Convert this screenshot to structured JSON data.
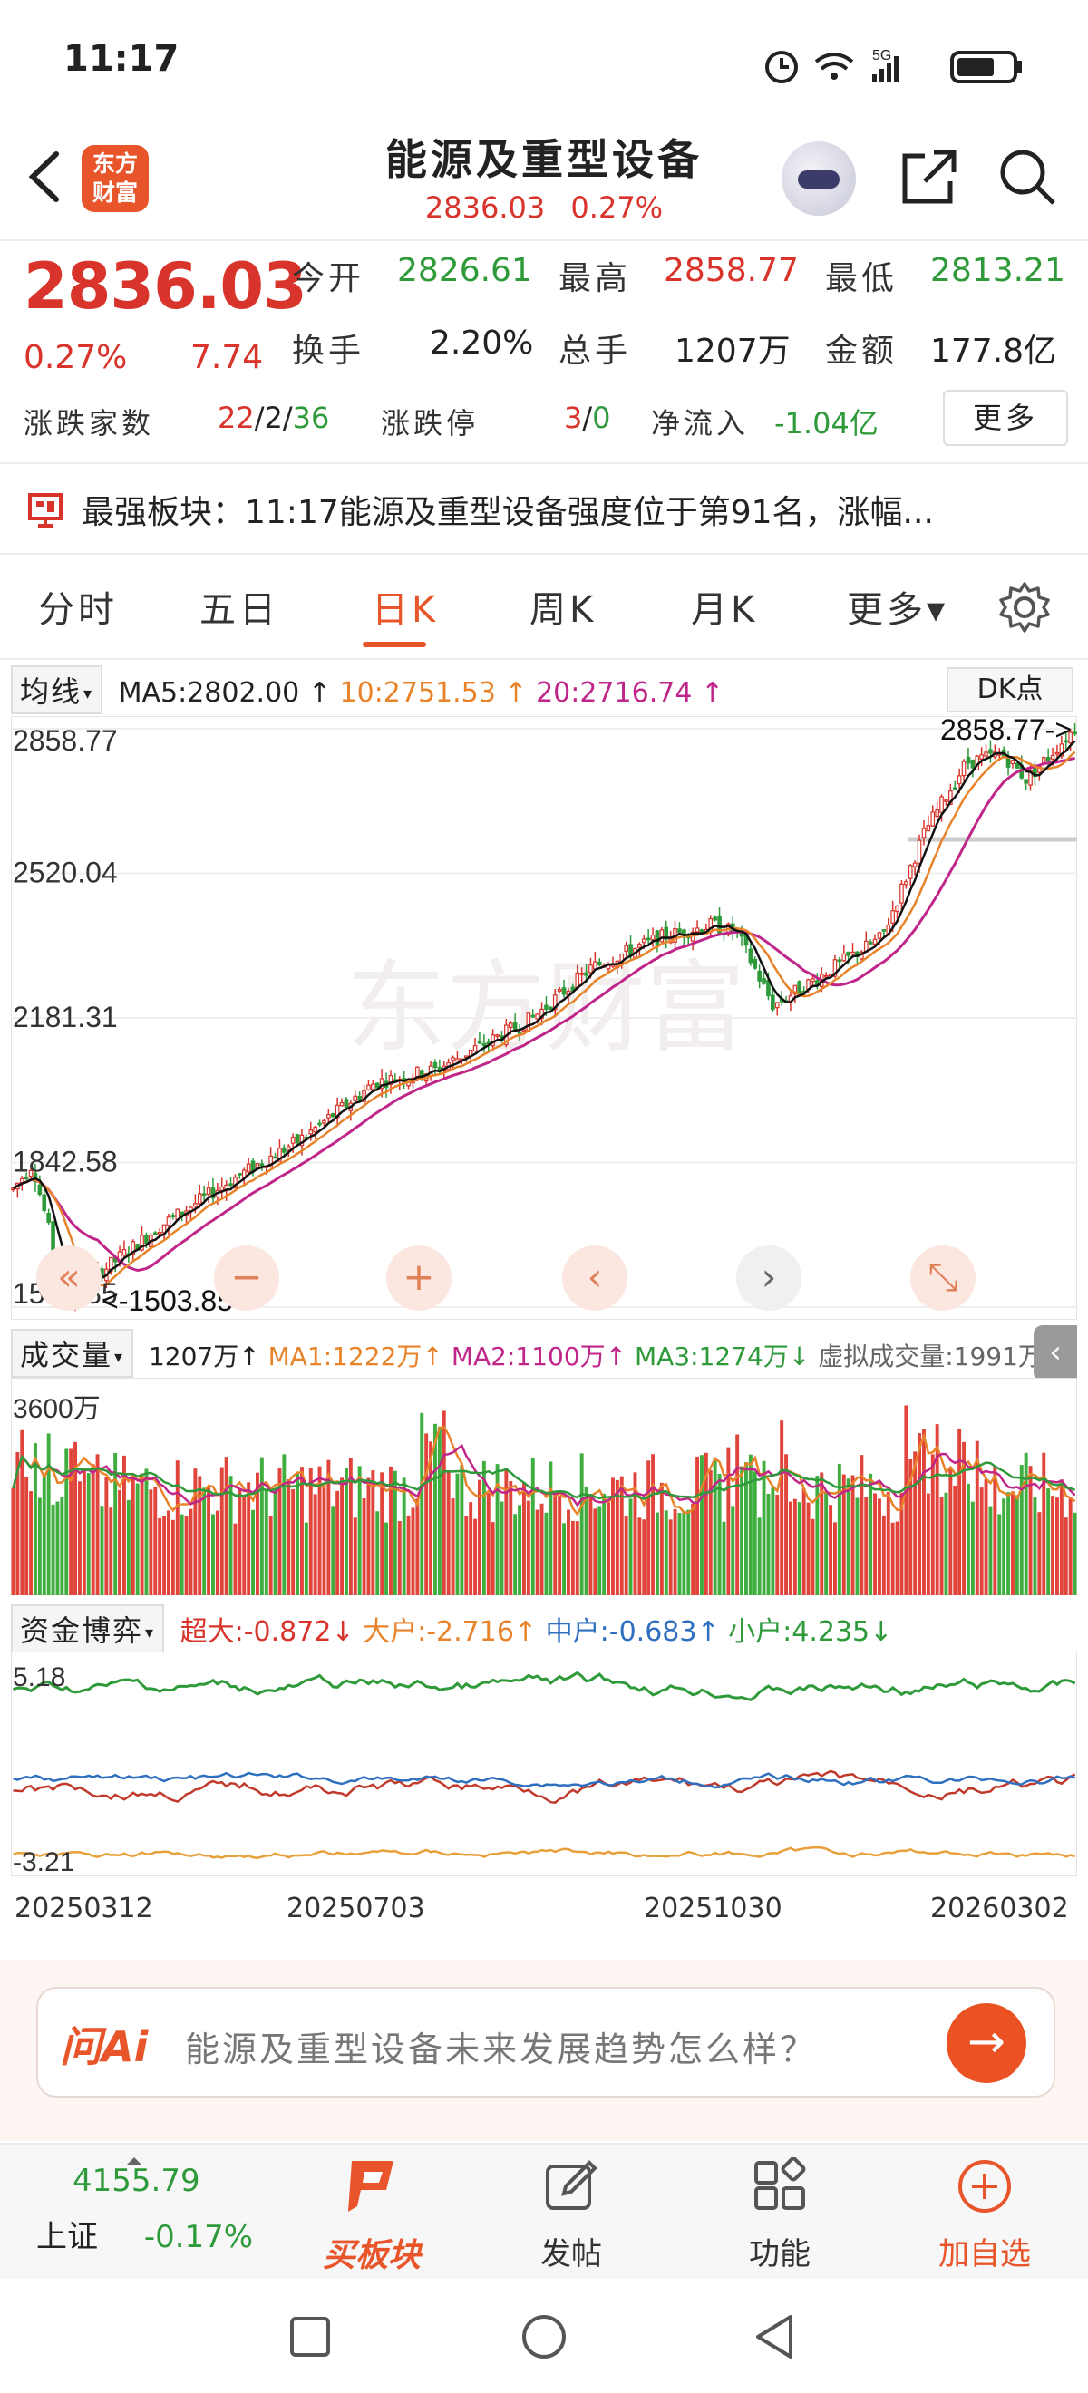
{
  "status_bar": {
    "time": "11:17",
    "battery_icon": "battery-icon",
    "wifi_icon": "wifi-icon",
    "signal_icon": "signal-icon",
    "alarm_icon": "alarm-icon",
    "net_label": "5G"
  },
  "header": {
    "logo_text_1": "东方",
    "logo_text_2": "财富",
    "title": "能源及重型设备",
    "price": "2836.03",
    "percent": "0.27%"
  },
  "quote": {
    "price": "2836.03",
    "change_pct": "0.27%",
    "change": "7.74",
    "open_label": "今开",
    "open": "2826.61",
    "high_label": "最高",
    "high": "2858.77",
    "low_label": "最低",
    "low": "2813.21",
    "turnover_label": "换手",
    "turnover": "2.20%",
    "volume_label": "总手",
    "volume": "1207万",
    "amount_label": "金额",
    "amount": "177.8亿",
    "breadth_label": "涨跌家数",
    "breadth_up": "22",
    "breadth_sep1": "/",
    "breadth_flat": "2",
    "breadth_sep2": "/",
    "breadth_down": "36",
    "limit_label": "涨跌停",
    "limit_up": "3",
    "limit_sep": "/",
    "limit_down": "0",
    "netflow_label": "净流入",
    "netflow": "-1.04亿",
    "more_button": "更多"
  },
  "strongest": {
    "text": "最强板块：11:17能源及重型设备强度位于第91名，涨幅..."
  },
  "tabs": [
    "分时",
    "五日",
    "日K",
    "周K",
    "月K",
    "更多▾"
  ],
  "active_tab": 2,
  "ma_bar": {
    "selector": "均线",
    "ma5": "MA5:2802.00",
    "ma10": "10:2751.53",
    "ma20": "20:2716.74",
    "dk_button": "DK点"
  },
  "main_chart": {
    "y_labels": [
      "2858.77",
      "2520.04",
      "2181.31",
      "1842.58",
      "1503.85"
    ],
    "high_marker": "2858.77->",
    "low_marker": "<-1503.85",
    "watermark": "东方财富"
  },
  "volume_bar": {
    "selector": "成交量",
    "vol": "1207万",
    "ma1": "MA1:1222万",
    "ma2": "MA2:1100万",
    "ma3": "MA3:1274万",
    "virtual": "虚拟成交量:1991万",
    "top_label": "3600万"
  },
  "fund_bar": {
    "selector": "资金博弈",
    "super": "超大:-0.872",
    "large": "大户:-2.716",
    "mid": "中户:-0.683",
    "small": "小户:4.235",
    "top_label": "5.18",
    "bottom_label": "-3.21"
  },
  "dates": [
    "20250312",
    "20250703",
    "20251030",
    "20260302"
  ],
  "ai": {
    "logo": "问Ai",
    "placeholder": "能源及重型设备未来发展趋势怎么样？"
  },
  "bottom_bar": {
    "index_value": "4155.79",
    "index_name": "上证",
    "index_change": "-0.17%",
    "buy_sector": "买板块",
    "post": "发帖",
    "functions": "功能",
    "add_watch": "加自选"
  },
  "colors": {
    "up": "#d9342b",
    "down": "#2e9a3a",
    "accent": "#e8552a",
    "ma5": "#111111",
    "ma10": "#e8832a",
    "ma20": "#c0268a"
  }
}
